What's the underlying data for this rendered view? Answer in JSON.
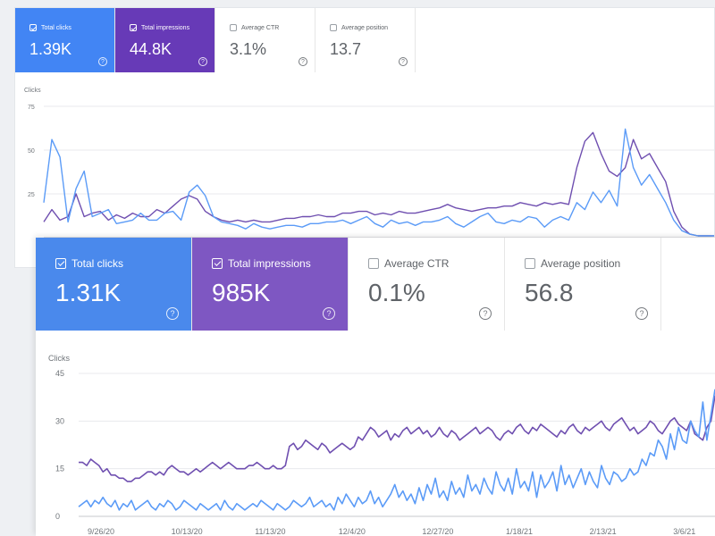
{
  "colors": {
    "clicks": "#4285f4",
    "impressions": "#673ab7",
    "clicks_line": "#5b9bf7",
    "impressions_line": "#6f4fb0"
  },
  "report_1": {
    "cards": [
      {
        "id": "clicks",
        "label": "Total clicks",
        "value": "1.39K",
        "checked": true
      },
      {
        "id": "impressions",
        "label": "Total impressions",
        "value": "44.8K",
        "checked": true
      },
      {
        "id": "ctr",
        "label": "Average CTR",
        "value": "3.1%",
        "checked": false
      },
      {
        "id": "position",
        "label": "Average position",
        "value": "13.7",
        "checked": false
      }
    ],
    "help_glyph": "?"
  },
  "report_2": {
    "cards": [
      {
        "id": "clicks",
        "label": "Total clicks",
        "value": "1.31K",
        "checked": true
      },
      {
        "id": "impressions",
        "label": "Total impressions",
        "value": "985K",
        "checked": true
      },
      {
        "id": "ctr",
        "label": "Average CTR",
        "value": "0.1%",
        "checked": false
      },
      {
        "id": "position",
        "label": "Average position",
        "value": "56.8",
        "checked": false
      }
    ],
    "help_glyph": "?"
  },
  "chart_data": [
    {
      "type": "line",
      "ylabel": "Clicks",
      "yticks": [
        25,
        50,
        75
      ],
      "ylim": [
        0,
        75
      ],
      "grid": true,
      "series": [
        {
          "values": [
            9,
            16,
            10,
            12,
            25,
            12,
            14,
            15,
            10,
            13,
            11,
            14,
            12,
            12,
            16,
            14,
            18,
            22,
            24,
            22,
            15,
            12,
            10,
            9,
            10,
            9,
            10,
            9,
            9,
            10,
            11,
            11,
            12,
            12,
            13,
            12,
            12,
            14,
            14,
            15,
            15,
            13,
            14,
            13,
            15,
            14,
            14,
            15,
            16,
            17,
            19,
            17,
            16,
            15,
            16,
            17,
            17,
            18,
            18,
            20,
            19,
            18,
            20,
            19,
            20,
            19,
            40,
            55,
            60,
            48,
            38,
            35,
            40,
            56,
            45,
            48,
            40,
            32,
            15,
            6,
            2,
            1,
            1,
            1
          ]
        },
        {
          "values": [
            20,
            56,
            46,
            9,
            28,
            38,
            12,
            14,
            16,
            8,
            9,
            10,
            14,
            10,
            10,
            14,
            15,
            10,
            26,
            30,
            24,
            12,
            9,
            8,
            7,
            5,
            8,
            6,
            5,
            6,
            7,
            7,
            6,
            8,
            8,
            9,
            9,
            10,
            8,
            10,
            12,
            8,
            6,
            10,
            8,
            9,
            7,
            9,
            9,
            10,
            12,
            8,
            6,
            9,
            12,
            14,
            9,
            8,
            10,
            9,
            12,
            11,
            6,
            10,
            12,
            10,
            20,
            16,
            26,
            20,
            27,
            18,
            62,
            40,
            30,
            36,
            28,
            20,
            10,
            4,
            2,
            1,
            1,
            1
          ]
        }
      ]
    },
    {
      "type": "line",
      "ylabel": "Clicks",
      "yticks": [
        0,
        15,
        30,
        45
      ],
      "ylim": [
        0,
        45
      ],
      "grid": true,
      "x_tick_labels": [
        "9/26/20",
        "10/13/20",
        "11/13/20",
        "12/4/20",
        "12/27/20",
        "1/18/21",
        "2/13/21",
        "3/6/21"
      ],
      "series": [
        {
          "values": [
            17,
            17,
            16,
            18,
            17,
            16,
            14,
            15,
            13,
            13,
            12,
            12,
            11,
            11,
            12,
            12,
            13,
            14,
            14,
            13,
            14,
            13,
            15,
            16,
            15,
            14,
            14,
            13,
            14,
            15,
            14,
            15,
            16,
            17,
            16,
            15,
            16,
            17,
            16,
            15,
            15,
            15,
            16,
            16,
            17,
            16,
            15,
            15,
            16,
            15,
            15,
            16,
            22,
            23,
            21,
            22,
            24,
            23,
            22,
            21,
            23,
            22,
            20,
            21,
            22,
            23,
            22,
            21,
            22,
            25,
            24,
            26,
            28,
            27,
            25,
            26,
            27,
            24,
            26,
            25,
            27,
            28,
            26,
            27,
            28,
            26,
            27,
            25,
            26,
            28,
            26,
            25,
            27,
            26,
            24,
            25,
            26,
            27,
            28,
            26,
            27,
            28,
            27,
            25,
            24,
            26,
            27,
            26,
            28,
            29,
            27,
            26,
            28,
            27,
            29,
            28,
            27,
            26,
            25,
            27,
            26,
            28,
            29,
            27,
            26,
            28,
            27,
            28,
            29,
            30,
            28,
            27,
            29,
            30,
            31,
            29,
            27,
            28,
            26,
            27,
            28,
            30,
            29,
            27,
            26,
            28,
            30,
            31,
            29,
            28,
            27,
            30,
            26,
            25,
            24,
            28,
            30,
            38
          ]
        },
        {
          "values": [
            3,
            4,
            5,
            3,
            5,
            4,
            6,
            4,
            3,
            5,
            2,
            4,
            3,
            5,
            2,
            3,
            4,
            5,
            3,
            2,
            4,
            3,
            5,
            4,
            2,
            3,
            5,
            4,
            3,
            2,
            4,
            3,
            2,
            3,
            4,
            2,
            5,
            3,
            2,
            4,
            3,
            2,
            3,
            4,
            3,
            5,
            4,
            3,
            2,
            4,
            3,
            2,
            3,
            5,
            4,
            3,
            4,
            6,
            3,
            4,
            5,
            3,
            4,
            2,
            6,
            4,
            7,
            5,
            3,
            6,
            4,
            5,
            8,
            4,
            6,
            3,
            5,
            7,
            10,
            6,
            8,
            5,
            7,
            4,
            9,
            5,
            10,
            7,
            12,
            6,
            8,
            5,
            11,
            7,
            9,
            6,
            13,
            8,
            10,
            7,
            12,
            9,
            7,
            14,
            10,
            8,
            12,
            7,
            15,
            9,
            11,
            8,
            14,
            6,
            13,
            9,
            11,
            14,
            8,
            16,
            10,
            13,
            9,
            12,
            15,
            10,
            14,
            11,
            9,
            16,
            12,
            10,
            14,
            13,
            11,
            12,
            15,
            13,
            14,
            18,
            16,
            20,
            19,
            24,
            22,
            18,
            26,
            21,
            28,
            24,
            23,
            30,
            27,
            25,
            36,
            24,
            32,
            40
          ]
        }
      ]
    }
  ]
}
